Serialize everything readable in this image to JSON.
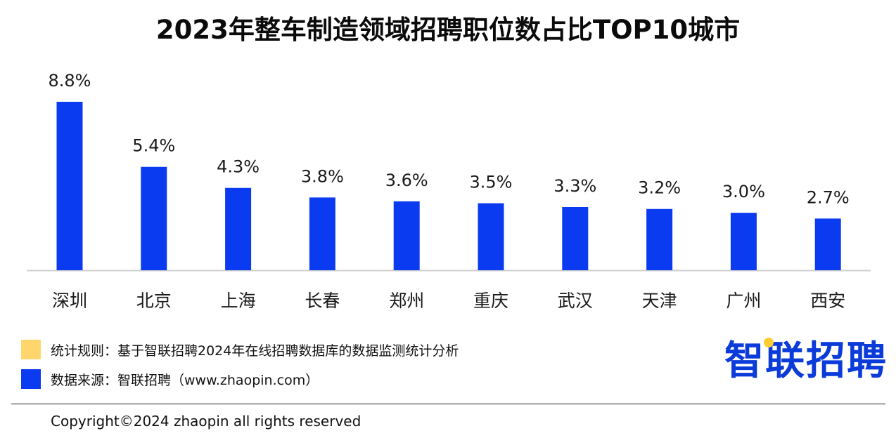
{
  "chart_data": {
    "type": "bar",
    "title": "2023年整车制造领域招聘职位数占比TOP10城市",
    "categories": [
      "深圳",
      "北京",
      "上海",
      "长春",
      "郑州",
      "重庆",
      "武汉",
      "天津",
      "广州",
      "西安"
    ],
    "values": [
      8.8,
      5.4,
      4.3,
      3.8,
      3.6,
      3.5,
      3.3,
      3.2,
      3.0,
      2.7
    ],
    "value_labels": [
      "8.8%",
      "5.4%",
      "4.3%",
      "3.8%",
      "3.6%",
      "3.5%",
      "3.3%",
      "3.2%",
      "3.0%",
      "2.7%"
    ],
    "ylim": [
      0,
      8.8
    ],
    "grid": false,
    "bar_color": "#0b3bf0"
  },
  "legend": [
    {
      "color": "#ffd66b",
      "text": "统计规则：基于智联招聘2024年在线招聘数据库的数据监测统计分析"
    },
    {
      "color": "#0b3bf0",
      "text": "数据来源：智联招聘（www.zhaopin.com）"
    }
  ],
  "logo": {
    "text": "智联招聘",
    "color": "#0b3bd9",
    "accent": "#ffcc33"
  },
  "footer": {
    "copyright": "Copyright©2024 zhaopin all rights reserved"
  }
}
